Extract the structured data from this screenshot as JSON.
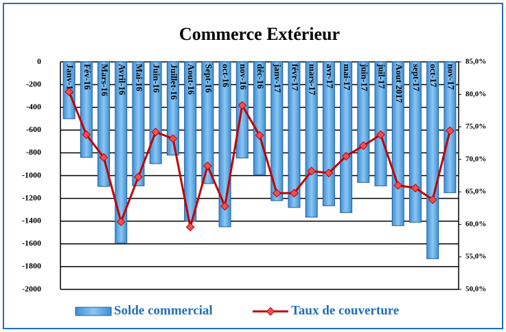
{
  "chart_data": {
    "type": "bar-line",
    "title": "Commerce Extérieur",
    "categories": [
      "Janv-16",
      "Fév-16",
      "Mars-16",
      "Avril-16",
      "Mai-16",
      "Juin-16",
      "Juillet-16",
      "Aout-16",
      "Sept-16",
      "oct-16",
      "nov-16",
      "déc-16",
      "janv-17",
      "févr-17",
      "mars-17",
      "avr-17",
      "mai-17",
      "juin-17",
      "juil-17",
      "Aout 2017",
      "sept-17",
      "oct-17",
      "nov-17"
    ],
    "series": [
      {
        "name": "Solde commercial",
        "type": "bar",
        "color": "#5aaae8",
        "values": [
          -500,
          -840,
          -1095,
          -1590,
          -1090,
          -895,
          -820,
          -1400,
          -1070,
          -1450,
          -845,
          -990,
          -1220,
          -1280,
          -1365,
          -1265,
          -1325,
          -1060,
          -1090,
          -1440,
          -1410,
          -1730,
          -1150
        ]
      },
      {
        "name": "Taux de couverture",
        "type": "line",
        "axis": "y2",
        "color": "#c00000",
        "values": [
          80.4,
          73.8,
          70.3,
          60.4,
          67.3,
          74.2,
          73.2,
          59.6,
          69.0,
          62.8,
          78.3,
          73.7,
          64.8,
          64.8,
          68.2,
          67.9,
          70.5,
          72.1,
          73.8,
          66.0,
          65.6,
          63.8,
          74.4
        ]
      }
    ],
    "ylim": [
      -2000,
      0
    ],
    "yticks": [
      0,
      -200,
      -400,
      -600,
      -800,
      -1000,
      -1200,
      -1400,
      -1600,
      -1800,
      -2000
    ],
    "y2lim": [
      50,
      85
    ],
    "y2ticks": [
      {
        "value": 85,
        "label": "85,0%"
      },
      {
        "value": 80,
        "label": "80,0%"
      },
      {
        "value": 75,
        "label": "75,0%"
      },
      {
        "value": 70,
        "label": "70,0%"
      },
      {
        "value": 65,
        "label": "65,0%"
      },
      {
        "value": 60,
        "label": "60,0%"
      },
      {
        "value": 55,
        "label": "55,0%"
      },
      {
        "value": 50,
        "label": "50,0%"
      }
    ],
    "grid": true,
    "legend": "bottom"
  }
}
